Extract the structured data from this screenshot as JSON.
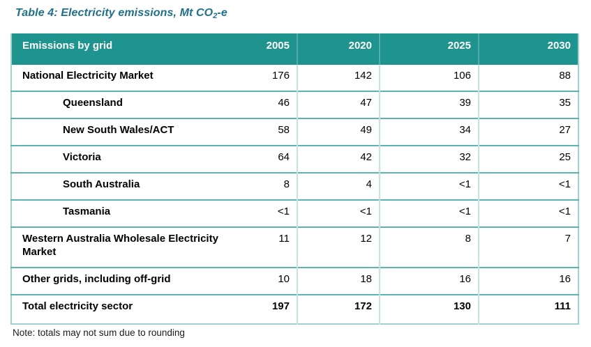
{
  "title": {
    "prefix": "Table 4: Electricity emissions, Mt CO",
    "subscript": "2",
    "suffix": "-e"
  },
  "table": {
    "header": {
      "label": "Emissions by grid",
      "years": [
        "2005",
        "2020",
        "2025",
        "2030"
      ]
    },
    "rows": [
      {
        "label": "National Electricity Market",
        "values": [
          "176",
          "142",
          "106",
          "88"
        ]
      },
      {
        "label": "Queensland",
        "values": [
          "46",
          "47",
          "39",
          "35"
        ]
      },
      {
        "label": "New South Wales/ACT",
        "values": [
          "58",
          "49",
          "34",
          "27"
        ]
      },
      {
        "label": "Victoria",
        "values": [
          "64",
          "42",
          "32",
          "25"
        ]
      },
      {
        "label": "South Australia",
        "values": [
          "8",
          "4",
          "<1",
          "<1"
        ]
      },
      {
        "label": "Tasmania",
        "values": [
          "<1",
          "<1",
          "<1",
          "<1"
        ]
      },
      {
        "label": "Western Australia Wholesale Electricity Market",
        "values": [
          "11",
          "12",
          "8",
          "7"
        ]
      },
      {
        "label": "Other grids, including off-grid",
        "values": [
          "10",
          "18",
          "16",
          "16"
        ]
      },
      {
        "label": "Total electricity sector",
        "values": [
          "197",
          "172",
          "130",
          "111"
        ]
      }
    ]
  },
  "note": "Note: totals may not sum due to rounding",
  "colors": {
    "header_bg": "#1f948e",
    "header_text": "#ffffff",
    "header_divider": "#52aeaa",
    "row_divider": "#5cb4b0",
    "body_divider": "#c2e4e2",
    "outer_border": "#9fd2cf",
    "title_text": "#1f7088",
    "body_text": "#000000"
  }
}
